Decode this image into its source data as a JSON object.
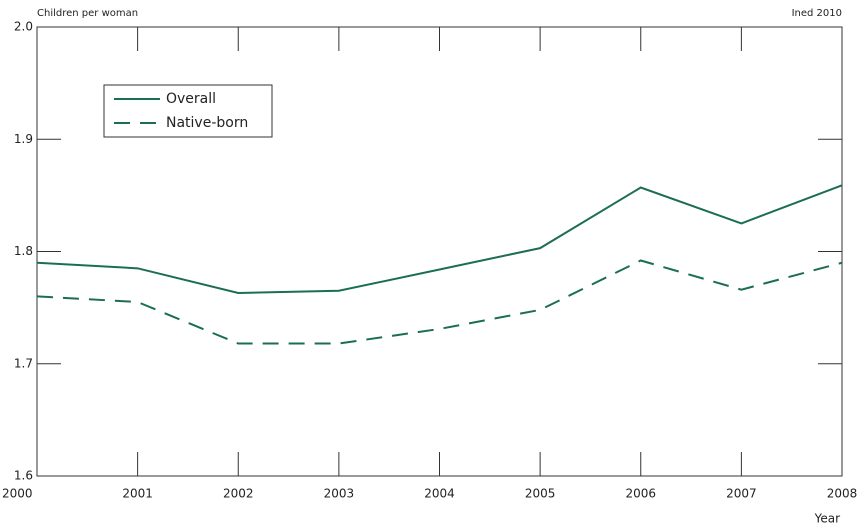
{
  "chart_data": {
    "type": "line",
    "y_label": "Children per woman",
    "source": "Ined 2010",
    "x_label": "Year",
    "x": [
      2000,
      2001,
      2002,
      2003,
      2004,
      2005,
      2006,
      2007,
      2008
    ],
    "series": [
      {
        "name": "Overall",
        "color": "#1b6e55",
        "dashed": false,
        "values": [
          1.79,
          1.785,
          1.763,
          1.765,
          1.784,
          1.803,
          1.857,
          1.825,
          1.859
        ]
      },
      {
        "name": "Native-born",
        "color": "#1b6e55",
        "dashed": true,
        "values": [
          1.76,
          1.755,
          1.718,
          1.718,
          1.731,
          1.748,
          1.792,
          1.766,
          1.79
        ]
      }
    ],
    "xlim": [
      2000,
      2008
    ],
    "xticks": [
      2000,
      2001,
      2002,
      2003,
      2004,
      2005,
      2006,
      2007,
      2008
    ],
    "ylim": [
      1.6,
      2.0
    ],
    "yticks": [
      1.6,
      1.7,
      1.8,
      1.9,
      {
        "value": 2.0,
        "label": "2.0"
      }
    ],
    "legend": "upper left"
  }
}
